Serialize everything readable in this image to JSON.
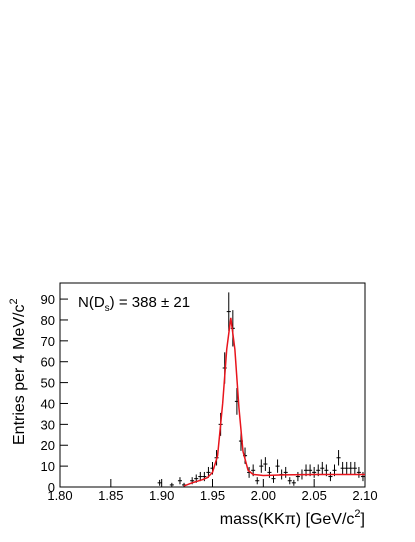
{
  "chart_data": {
    "type": "errorbar",
    "annotation": {
      "prefix": "N(D",
      "sub": "s",
      "suffix": ") = 388 ± 21"
    },
    "x_label": {
      "text": "mass(KKπ) [GeV/c",
      "sup": "2",
      "end": "]"
    },
    "y_label": {
      "text": "Entries per 4 MeV/c",
      "sup": "2"
    },
    "xlim": [
      1.8,
      2.1
    ],
    "xticks": [
      {
        "value": 1.8,
        "label": "1.80"
      },
      {
        "value": 1.85,
        "label": "1.85"
      },
      {
        "value": 1.9,
        "label": "1.90"
      },
      {
        "value": 1.95,
        "label": "1.95"
      },
      {
        "value": 2.0,
        "label": "2.00"
      },
      {
        "value": 2.05,
        "label": "2.05"
      },
      {
        "value": 2.1,
        "label": "2.10"
      }
    ],
    "ylim": [
      0,
      97.7
    ],
    "yticks": [
      0,
      10,
      20,
      30,
      40,
      50,
      60,
      70,
      80,
      90
    ],
    "points": {
      "color": "#000000",
      "x": [
        1.898,
        1.91,
        1.918,
        1.922,
        1.93,
        1.934,
        1.938,
        1.942,
        1.946,
        1.95,
        1.954,
        1.958,
        1.962,
        1.966,
        1.97,
        1.974,
        1.978,
        1.982,
        1.986,
        1.99,
        1.994,
        1.998,
        2.002,
        2.006,
        2.01,
        2.014,
        2.018,
        2.022,
        2.026,
        2.03,
        2.034,
        2.038,
        2.042,
        2.046,
        2.05,
        2.054,
        2.058,
        2.062,
        2.066,
        2.07,
        2.074,
        2.078,
        2.082,
        2.086,
        2.09,
        2.094,
        2.098
      ],
      "values": [
        2,
        1,
        3,
        1,
        3,
        4,
        5,
        5,
        7,
        9,
        14,
        30,
        57,
        84,
        76,
        41,
        22,
        15,
        7,
        8,
        3,
        10,
        11,
        7,
        4,
        10,
        6,
        7,
        3,
        2,
        5,
        6,
        8,
        8,
        7,
        8,
        9,
        8,
        5,
        8,
        14,
        9,
        9,
        9,
        9,
        7,
        5
      ],
      "errors": [
        1.4,
        1,
        1.7,
        1,
        1.7,
        2,
        2.2,
        2.2,
        2.6,
        3,
        3.7,
        5.5,
        7.5,
        9.2,
        8.7,
        6.4,
        4.7,
        3.9,
        2.6,
        2.8,
        1.7,
        3.2,
        3.3,
        2.6,
        2,
        3.2,
        2.4,
        2.6,
        1.7,
        1.4,
        2.2,
        2.4,
        2.8,
        2.8,
        2.6,
        2.8,
        3,
        2.8,
        2.2,
        2.8,
        3.7,
        3,
        3,
        3,
        3,
        2.6,
        2.2
      ]
    },
    "fit": {
      "color": "#e8141c",
      "x": [
        1.922,
        1.93,
        1.94,
        1.945,
        1.95,
        1.955,
        1.96,
        1.964,
        1.968,
        1.972,
        1.976,
        1.98,
        1.985,
        1.99,
        2.0,
        2.02,
        2.05,
        2.1
      ],
      "values": [
        0.5,
        2,
        3.5,
        4.5,
        7,
        15,
        40,
        66,
        81,
        66,
        38,
        17,
        8,
        6,
        5.5,
        5.8,
        6,
        6
      ]
    }
  }
}
